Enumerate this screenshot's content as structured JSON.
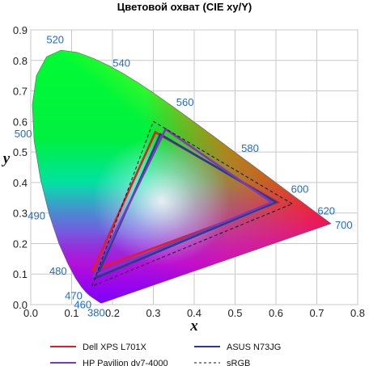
{
  "chart_data": {
    "type": "scatter",
    "title": "Цветовой охват (CIE xy/Y)",
    "xlabel": "x",
    "ylabel": "y",
    "xlim": [
      0,
      0.8
    ],
    "ylim": [
      0,
      0.9
    ],
    "x_ticks": [
      "0.0",
      "0.1",
      "0.2",
      "0.3",
      "0.4",
      "0.5",
      "0.6",
      "0.7",
      "0.8"
    ],
    "y_ticks": [
      "0.0",
      "0.1",
      "0.2",
      "0.3",
      "0.4",
      "0.5",
      "0.6",
      "0.7",
      "0.8",
      "0.9"
    ],
    "grid": true,
    "locus": [
      [
        0.1741,
        0.005
      ],
      [
        0.1738,
        0.0049
      ],
      [
        0.1736,
        0.0049
      ],
      [
        0.1733,
        0.0048
      ],
      [
        0.173,
        0.0048
      ],
      [
        0.1726,
        0.0048
      ],
      [
        0.1721,
        0.0048
      ],
      [
        0.1714,
        0.0051
      ],
      [
        0.1703,
        0.0058
      ],
      [
        0.1689,
        0.0069
      ],
      [
        0.1669,
        0.0086
      ],
      [
        0.1644,
        0.0109
      ],
      [
        0.1611,
        0.0138
      ],
      [
        0.1566,
        0.0177
      ],
      [
        0.151,
        0.0227
      ],
      [
        0.144,
        0.0297
      ],
      [
        0.1355,
        0.0399
      ],
      [
        0.1241,
        0.0578
      ],
      [
        0.1096,
        0.0868
      ],
      [
        0.0913,
        0.1327
      ],
      [
        0.0687,
        0.2007
      ],
      [
        0.0454,
        0.295
      ],
      [
        0.0235,
        0.4127
      ],
      [
        0.0082,
        0.5384
      ],
      [
        0.0039,
        0.6548
      ],
      [
        0.0139,
        0.7502
      ],
      [
        0.0389,
        0.812
      ],
      [
        0.0743,
        0.8338
      ],
      [
        0.1142,
        0.8262
      ],
      [
        0.1547,
        0.8059
      ],
      [
        0.1929,
        0.7816
      ],
      [
        0.2296,
        0.7543
      ],
      [
        0.2658,
        0.7243
      ],
      [
        0.3016,
        0.6923
      ],
      [
        0.3373,
        0.6589
      ],
      [
        0.3731,
        0.6245
      ],
      [
        0.4087,
        0.5896
      ],
      [
        0.4441,
        0.5547
      ],
      [
        0.4788,
        0.5202
      ],
      [
        0.5125,
        0.4866
      ],
      [
        0.5448,
        0.4544
      ],
      [
        0.5752,
        0.4242
      ],
      [
        0.6029,
        0.3965
      ],
      [
        0.627,
        0.3725
      ],
      [
        0.6482,
        0.3514
      ],
      [
        0.6658,
        0.334
      ],
      [
        0.6801,
        0.3197
      ],
      [
        0.6915,
        0.3083
      ],
      [
        0.7006,
        0.2993
      ],
      [
        0.7079,
        0.292
      ],
      [
        0.714,
        0.2859
      ],
      [
        0.719,
        0.2809
      ],
      [
        0.723,
        0.277
      ],
      [
        0.726,
        0.274
      ],
      [
        0.7283,
        0.2717
      ],
      [
        0.73,
        0.27
      ],
      [
        0.7347,
        0.2653
      ]
    ],
    "wavelength_labels": [
      {
        "text": "380",
        "x": 0.1741,
        "y": 0.005
      },
      {
        "text": "460",
        "x": 0.144,
        "y": 0.0297
      },
      {
        "text": "470",
        "x": 0.1241,
        "y": 0.0578
      },
      {
        "text": "480",
        "x": 0.0913,
        "y": 0.1327
      },
      {
        "text": "490",
        "x": 0.0454,
        "y": 0.295
      },
      {
        "text": "500",
        "x": 0.0082,
        "y": 0.5384
      },
      {
        "text": "520",
        "x": 0.0743,
        "y": 0.8338
      },
      {
        "text": "540",
        "x": 0.2296,
        "y": 0.7543
      },
      {
        "text": "560",
        "x": 0.3731,
        "y": 0.6245
      },
      {
        "text": "580",
        "x": 0.5125,
        "y": 0.4866
      },
      {
        "text": "600",
        "x": 0.627,
        "y": 0.3725
      },
      {
        "text": "620",
        "x": 0.6915,
        "y": 0.3083
      },
      {
        "text": "700",
        "x": 0.7347,
        "y": 0.2653
      }
    ],
    "series": [
      {
        "name": "Dell XPS L701X",
        "color": "#e02020",
        "dash": false,
        "points": [
          [
            0.605,
            0.335
          ],
          [
            0.305,
            0.565
          ],
          [
            0.152,
            0.112
          ]
        ]
      },
      {
        "name": "ASUS N73JG",
        "color": "#1f3f8f",
        "dash": false,
        "points": [
          [
            0.6,
            0.336
          ],
          [
            0.317,
            0.558
          ],
          [
            0.16,
            0.088
          ]
        ]
      },
      {
        "name": "HP Pavilion dv7-4000",
        "color": "#7a3ab8",
        "dash": false,
        "points": [
          [
            0.59,
            0.335
          ],
          [
            0.33,
            0.575
          ],
          [
            0.155,
            0.095
          ]
        ]
      },
      {
        "name": "sRGB",
        "color": "#111111",
        "dash": true,
        "points": [
          [
            0.64,
            0.33
          ],
          [
            0.3,
            0.6
          ],
          [
            0.15,
            0.06
          ]
        ]
      }
    ],
    "legend": {
      "position": "bottom",
      "columns": 2
    }
  }
}
